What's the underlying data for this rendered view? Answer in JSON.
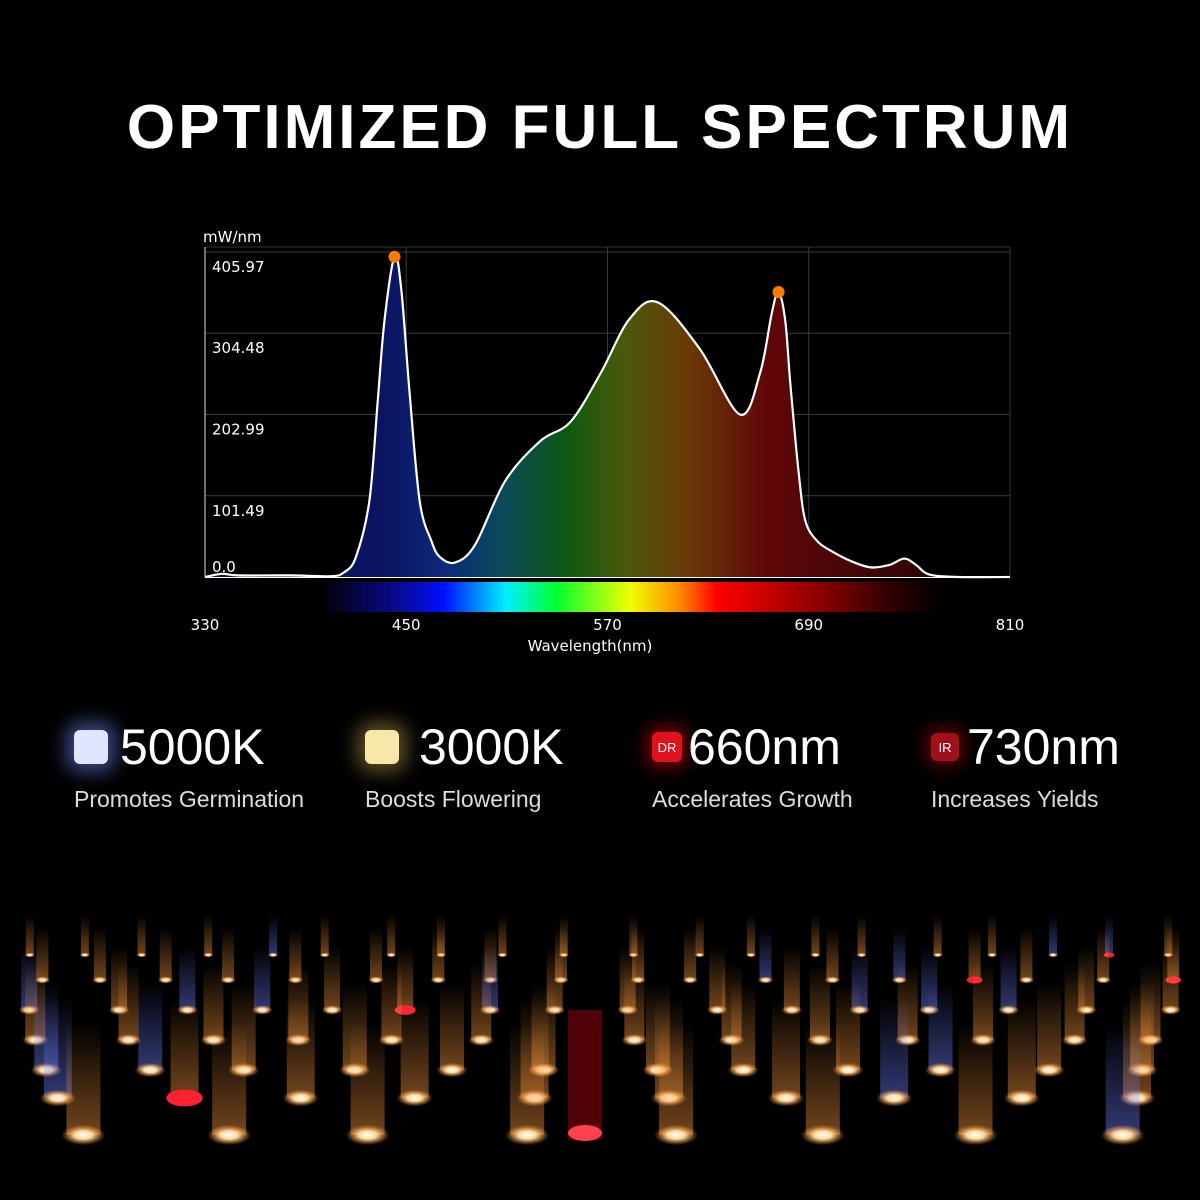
{
  "title": "OPTIMIZED FULL SPECTRUM",
  "chart_data": {
    "type": "area",
    "title": "",
    "ylabel": "mW/nm",
    "xlabel": "Wavelength(nm)",
    "xlim": [
      330,
      810
    ],
    "ylim": [
      0,
      405.97
    ],
    "x_ticks": [
      "330",
      "450",
      "570",
      "690",
      "810"
    ],
    "y_ticks": [
      "0.0",
      "101.49",
      "202.99",
      "304.48",
      "405.97"
    ],
    "grid": true,
    "x": [
      330,
      340,
      350,
      380,
      405,
      413,
      420,
      428,
      433,
      437,
      443,
      447,
      452,
      458,
      465,
      470,
      479,
      491,
      509,
      530,
      548,
      566,
      583,
      600,
      625,
      649,
      661,
      668,
      672,
      676,
      679,
      684,
      688,
      695,
      703,
      715,
      727,
      738,
      747,
      754,
      762,
      780,
      810
    ],
    "y": [
      0,
      4,
      2,
      2,
      1,
      6,
      25,
      95,
      220,
      320,
      400,
      360,
      230,
      95,
      45,
      25,
      18,
      40,
      120,
      170,
      194,
      255,
      322,
      343,
      285,
      203,
      255,
      330,
      356,
      320,
      242,
      130,
      70,
      45,
      33,
      20,
      12,
      15,
      23,
      15,
      3,
      0,
      0
    ],
    "peak_markers": [
      {
        "x": 443,
        "y": 400
      },
      {
        "x": 672,
        "y": 356
      }
    ],
    "colors": {
      "line": "#ffffff",
      "marker": "#ff7a00"
    }
  },
  "features": [
    {
      "value": "5000K",
      "description": "Promotes Germination",
      "chip_label": "",
      "chip_color": "#dfe6ff"
    },
    {
      "value": "3000K",
      "description": "Boosts Flowering",
      "chip_label": "",
      "chip_color": "#f7e7a8"
    },
    {
      "value": "660nm",
      "description": "Accelerates Growth",
      "chip_label": "DR",
      "chip_color": "#e0101c"
    },
    {
      "value": "730nm",
      "description": "Increases Yields",
      "chip_label": "IR",
      "chip_color": "#a0101a"
    }
  ]
}
